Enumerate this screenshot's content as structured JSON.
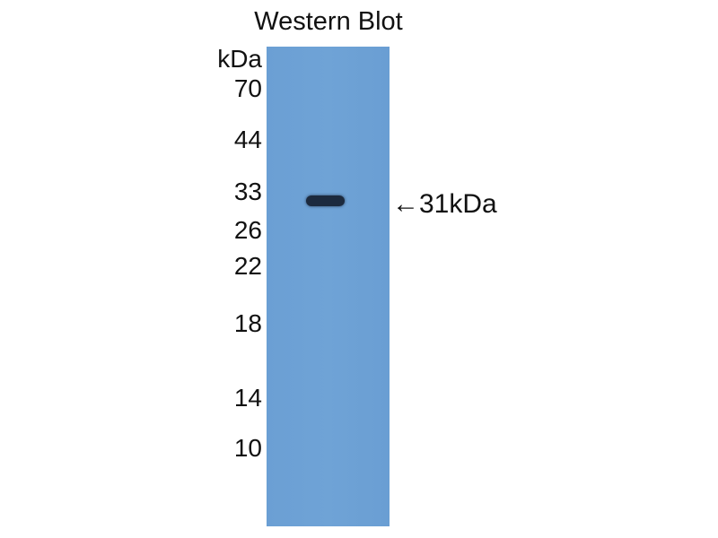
{
  "title": "Western Blot",
  "unit_label": "kDa",
  "markers": [
    "70",
    "44",
    "33",
    "26",
    "22",
    "18",
    "14",
    "10"
  ],
  "band_annotation": "←31kDa",
  "colors": {
    "membrane": "#6b9fd4",
    "band": "#1c2a3e"
  }
}
